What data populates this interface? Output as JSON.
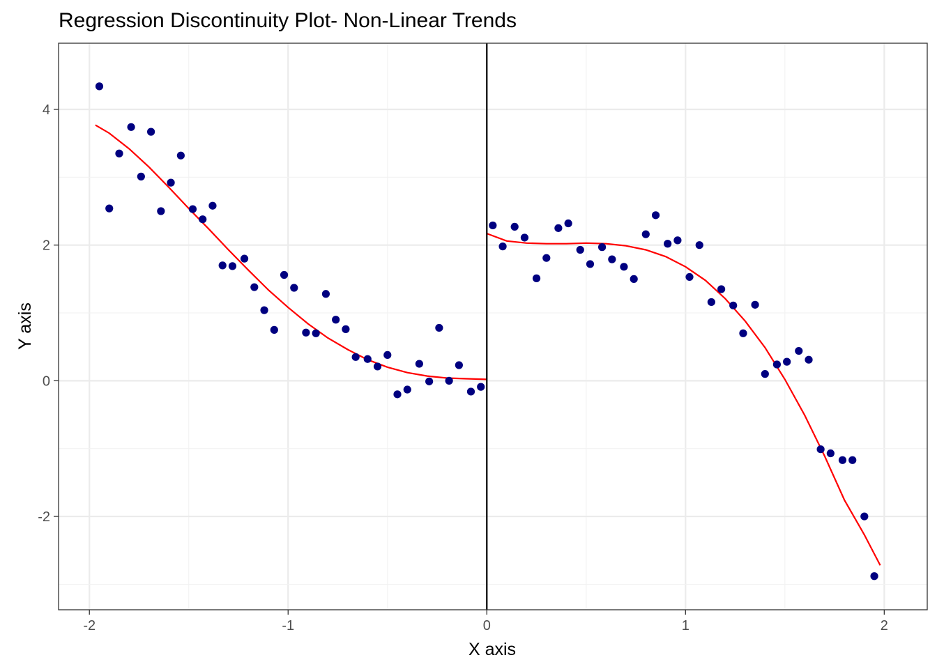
{
  "chart_data": {
    "type": "scatter",
    "title": "Regression Discontinuity Plot- Non-Linear Trends",
    "xlabel": "X axis",
    "ylabel": "Y axis",
    "xlim": [
      -2.0,
      2.0
    ],
    "ylim": [
      -3.0,
      4.6
    ],
    "x_ticks": [
      -2,
      -1,
      0,
      1,
      2
    ],
    "x_tick_labels": [
      "-2",
      "-1",
      "0",
      "1",
      "2"
    ],
    "y_ticks": [
      -2,
      0,
      2,
      4
    ],
    "y_tick_labels": [
      "-2",
      "0",
      "2",
      "4"
    ],
    "grid": true,
    "legend": "none",
    "cutoff_x": 0,
    "point_color": "#000080",
    "fit_color": "#ff0000",
    "cutoff_color": "#000000",
    "points": [
      [
        -1.95,
        4.34
      ],
      [
        -1.9,
        2.54
      ],
      [
        -1.85,
        3.35
      ],
      [
        -1.79,
        3.74
      ],
      [
        -1.74,
        3.01
      ],
      [
        -1.69,
        3.67
      ],
      [
        -1.64,
        2.5
      ],
      [
        -1.59,
        2.92
      ],
      [
        -1.54,
        3.32
      ],
      [
        -1.48,
        2.53
      ],
      [
        -1.43,
        2.38
      ],
      [
        -1.38,
        2.58
      ],
      [
        -1.33,
        1.7
      ],
      [
        -1.28,
        1.69
      ],
      [
        -1.22,
        1.8
      ],
      [
        -1.17,
        1.38
      ],
      [
        -1.12,
        1.04
      ],
      [
        -1.07,
        0.75
      ],
      [
        -1.02,
        1.56
      ],
      [
        -0.97,
        1.37
      ],
      [
        -0.91,
        0.71
      ],
      [
        -0.86,
        0.7
      ],
      [
        -0.81,
        1.28
      ],
      [
        -0.76,
        0.9
      ],
      [
        -0.71,
        0.76
      ],
      [
        -0.66,
        0.35
      ],
      [
        -0.6,
        0.32
      ],
      [
        -0.55,
        0.21
      ],
      [
        -0.5,
        0.38
      ],
      [
        -0.45,
        -0.2
      ],
      [
        -0.4,
        -0.13
      ],
      [
        -0.34,
        0.25
      ],
      [
        -0.29,
        -0.01
      ],
      [
        -0.24,
        0.78
      ],
      [
        -0.19,
        0.0
      ],
      [
        -0.14,
        0.23
      ],
      [
        -0.08,
        -0.16
      ],
      [
        -0.03,
        -0.09
      ],
      [
        0.03,
        2.29
      ],
      [
        0.08,
        1.98
      ],
      [
        0.14,
        2.27
      ],
      [
        0.19,
        2.11
      ],
      [
        0.25,
        1.51
      ],
      [
        0.3,
        1.81
      ],
      [
        0.36,
        2.25
      ],
      [
        0.41,
        2.32
      ],
      [
        0.47,
        1.93
      ],
      [
        0.52,
        1.72
      ],
      [
        0.58,
        1.97
      ],
      [
        0.63,
        1.79
      ],
      [
        0.69,
        1.68
      ],
      [
        0.74,
        1.5
      ],
      [
        0.8,
        2.16
      ],
      [
        0.85,
        2.44
      ],
      [
        0.91,
        2.02
      ],
      [
        0.96,
        2.07
      ],
      [
        1.02,
        1.53
      ],
      [
        1.07,
        2.0
      ],
      [
        1.13,
        1.16
      ],
      [
        1.18,
        1.35
      ],
      [
        1.24,
        1.11
      ],
      [
        1.29,
        0.7
      ],
      [
        1.35,
        1.12
      ],
      [
        1.4,
        0.1
      ],
      [
        1.46,
        0.24
      ],
      [
        1.51,
        0.28
      ],
      [
        1.57,
        0.44
      ],
      [
        1.62,
        0.31
      ],
      [
        1.68,
        -1.01
      ],
      [
        1.73,
        -1.07
      ],
      [
        1.79,
        -1.17
      ],
      [
        1.84,
        -1.17
      ],
      [
        1.9,
        -2.0
      ],
      [
        1.95,
        -2.88
      ]
    ],
    "fit_left": [
      [
        -1.97,
        3.77
      ],
      [
        -1.9,
        3.65
      ],
      [
        -1.8,
        3.42
      ],
      [
        -1.7,
        3.15
      ],
      [
        -1.6,
        2.85
      ],
      [
        -1.5,
        2.54
      ],
      [
        -1.4,
        2.24
      ],
      [
        -1.3,
        1.93
      ],
      [
        -1.2,
        1.63
      ],
      [
        -1.1,
        1.34
      ],
      [
        -1.0,
        1.08
      ],
      [
        -0.9,
        0.84
      ],
      [
        -0.8,
        0.63
      ],
      [
        -0.7,
        0.46
      ],
      [
        -0.6,
        0.31
      ],
      [
        -0.5,
        0.2
      ],
      [
        -0.4,
        0.12
      ],
      [
        -0.3,
        0.07
      ],
      [
        -0.2,
        0.04
      ],
      [
        -0.1,
        0.03
      ],
      [
        0.0,
        0.02
      ]
    ],
    "fit_right": [
      [
        0.0,
        2.17
      ],
      [
        0.1,
        2.06
      ],
      [
        0.2,
        2.03
      ],
      [
        0.3,
        2.02
      ],
      [
        0.4,
        2.02
      ],
      [
        0.5,
        2.03
      ],
      [
        0.6,
        2.02
      ],
      [
        0.7,
        1.99
      ],
      [
        0.8,
        1.93
      ],
      [
        0.9,
        1.83
      ],
      [
        1.0,
        1.68
      ],
      [
        1.1,
        1.48
      ],
      [
        1.2,
        1.21
      ],
      [
        1.3,
        0.88
      ],
      [
        1.4,
        0.49
      ],
      [
        1.5,
        0.02
      ],
      [
        1.6,
        -0.51
      ],
      [
        1.7,
        -1.11
      ],
      [
        1.8,
        -1.76
      ],
      [
        1.9,
        -2.27
      ],
      [
        1.98,
        -2.72
      ]
    ]
  }
}
